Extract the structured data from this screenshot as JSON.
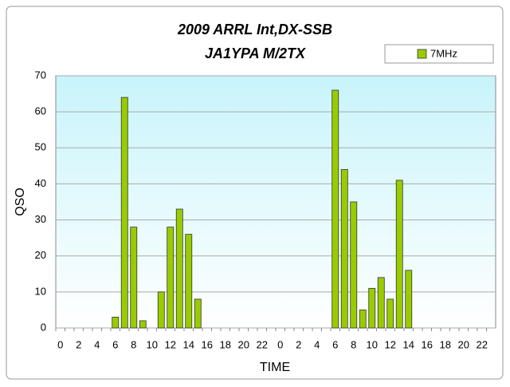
{
  "chart_data": {
    "type": "bar",
    "title": "2009 ARRL Int,DX-SSB",
    "subtitle": "JA1YPA  M/2TX",
    "x_label": "TIME",
    "y_label": "QSO",
    "categories": [
      "0",
      null,
      "2",
      null,
      "4",
      null,
      "6",
      null,
      "8",
      null,
      "10",
      null,
      "12",
      null,
      "14",
      null,
      "16",
      null,
      "18",
      null,
      "20",
      null,
      "22",
      null,
      "0",
      null,
      "2",
      null,
      "4",
      null,
      "6",
      null,
      "8",
      null,
      "10",
      null,
      "12",
      null,
      "14",
      null,
      "16",
      null,
      "18",
      null,
      "20",
      null,
      "22",
      null
    ],
    "series": [
      {
        "name": "7MHz",
        "color": "#99cc00",
        "values": [
          0,
          0,
          0,
          0,
          0,
          0,
          3,
          64,
          28,
          2,
          0,
          10,
          28,
          33,
          26,
          8,
          0,
          0,
          0,
          0,
          0,
          0,
          0,
          0,
          0,
          0,
          0,
          0,
          0,
          0,
          66,
          44,
          35,
          5,
          11,
          14,
          8,
          41,
          16,
          0,
          0,
          0,
          0,
          0,
          0,
          0,
          0,
          0
        ]
      }
    ],
    "ylim": [
      0,
      70
    ],
    "yticks": [
      0,
      10,
      20,
      30,
      40,
      50,
      60,
      70
    ],
    "grid": true,
    "legend": "top-right"
  }
}
